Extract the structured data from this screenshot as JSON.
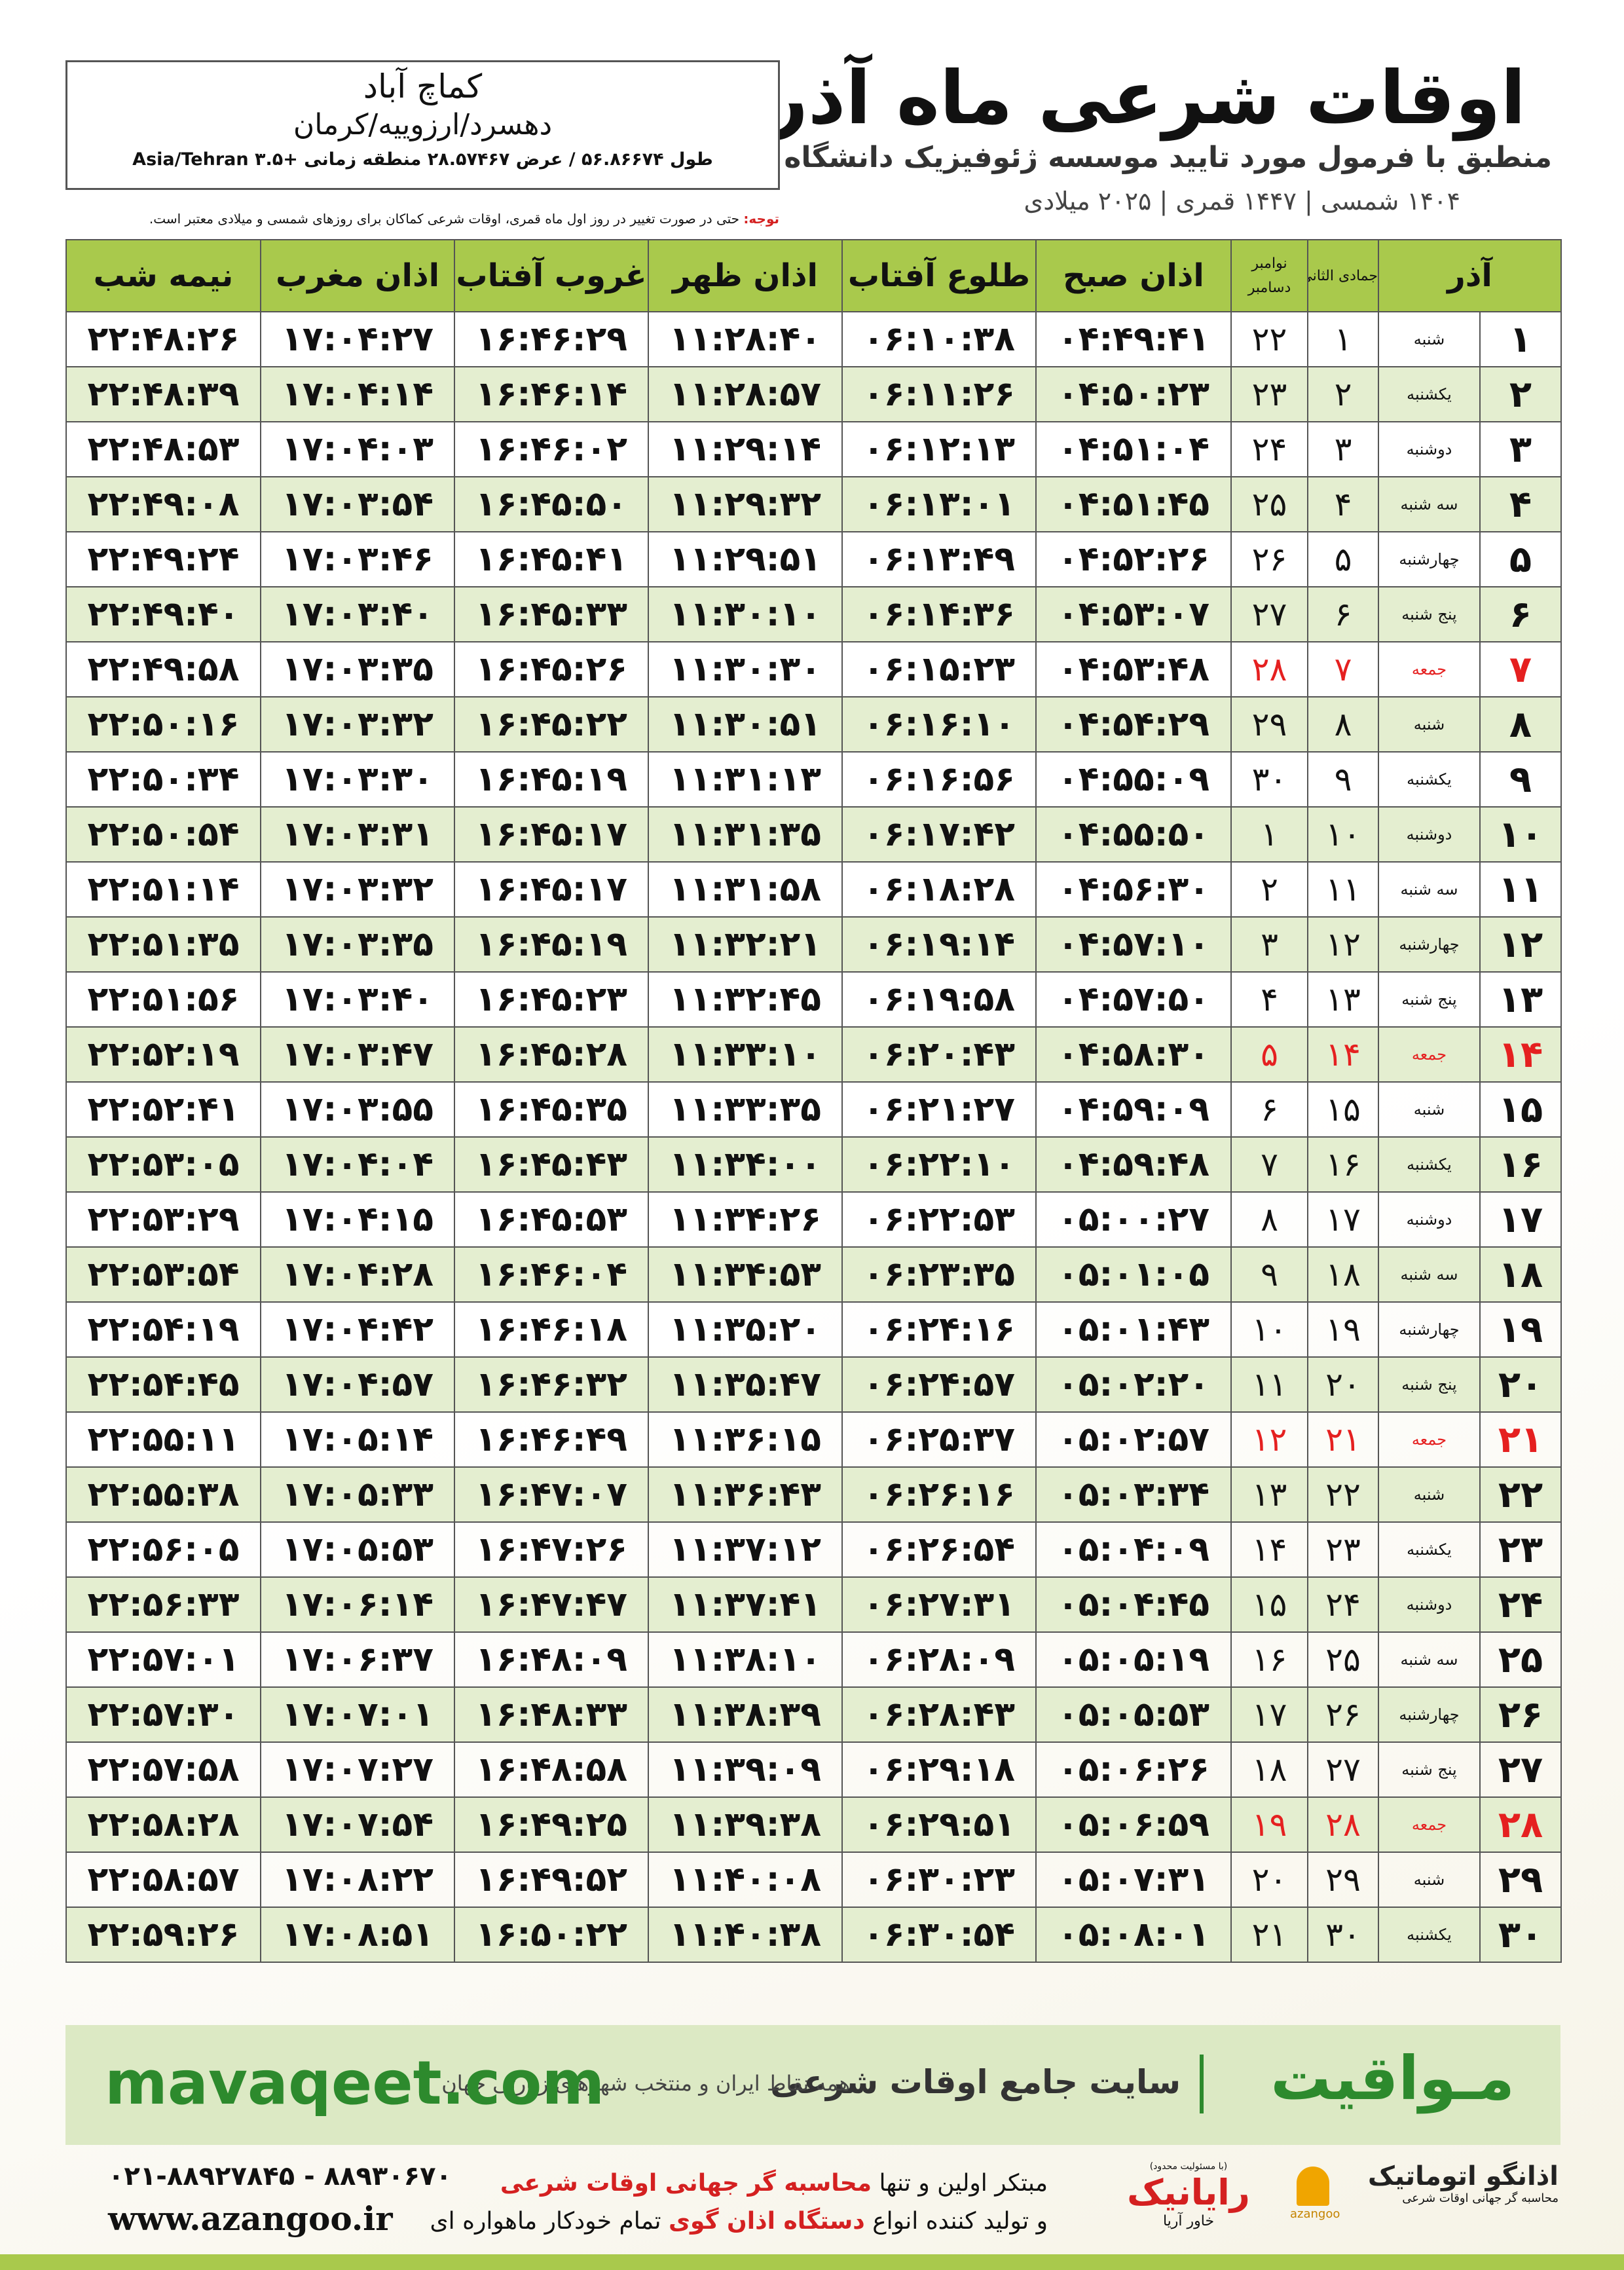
{
  "header": {
    "title": "اوقات شرعی ماه آذر",
    "subtitle": "منطبق با فرمول مورد تایید موسسه ژئوفیزیک دانشگاه تهران",
    "dates": "۱۴۰۴ شمسی | ۱۴۴۷ قمری | ۲۰۲۵ میلادی"
  },
  "location": {
    "city": "کماچ آباد",
    "region": "دهسرد/ارزوییه/کرمان",
    "coords": "طول ۵۶.۸۶۶۷۴ / عرض ۲۸.۵۷۴۶۷ منطقه زمانی +۳.۵ Asia/Tehran"
  },
  "note": {
    "label": "توجه:",
    "text": "حتی در صورت تغییر در روز اول ماه قمری، اوقات شرعی کماکان برای روزهای شمسی و میلادی معتبر است."
  },
  "table": {
    "header": [
      "آذر",
      "جمادی الثانی",
      "نوامبر",
      "دسامبر",
      "اذان صبح",
      "طلوع آفتاب",
      "اذان ظهر",
      "غروب آفتاب",
      "اذان مغرب",
      "نیمه شب"
    ],
    "rows": [
      [
        "۱",
        "شنبه",
        "۱",
        "۲۲",
        "۰۴:۴۹:۴۱",
        "۰۶:۱۰:۳۸",
        "۱۱:۲۸:۴۰",
        "۱۶:۴۶:۲۹",
        "۱۷:۰۴:۲۷",
        "۲۲:۴۸:۲۶"
      ],
      [
        "۲",
        "یکشنبه",
        "۲",
        "۲۳",
        "۰۴:۵۰:۲۳",
        "۰۶:۱۱:۲۶",
        "۱۱:۲۸:۵۷",
        "۱۶:۴۶:۱۴",
        "۱۷:۰۴:۱۴",
        "۲۲:۴۸:۳۹"
      ],
      [
        "۳",
        "دوشنبه",
        "۳",
        "۲۴",
        "۰۴:۵۱:۰۴",
        "۰۶:۱۲:۱۳",
        "۱۱:۲۹:۱۴",
        "۱۶:۴۶:۰۲",
        "۱۷:۰۴:۰۳",
        "۲۲:۴۸:۵۳"
      ],
      [
        "۴",
        "سه شنبه",
        "۴",
        "۲۵",
        "۰۴:۵۱:۴۵",
        "۰۶:۱۳:۰۱",
        "۱۱:۲۹:۳۲",
        "۱۶:۴۵:۵۰",
        "۱۷:۰۳:۵۴",
        "۲۲:۴۹:۰۸"
      ],
      [
        "۵",
        "چهارشنبه",
        "۵",
        "۲۶",
        "۰۴:۵۲:۲۶",
        "۰۶:۱۳:۴۹",
        "۱۱:۲۹:۵۱",
        "۱۶:۴۵:۴۱",
        "۱۷:۰۳:۴۶",
        "۲۲:۴۹:۲۴"
      ],
      [
        "۶",
        "پنج شنبه",
        "۶",
        "۲۷",
        "۰۴:۵۳:۰۷",
        "۰۶:۱۴:۳۶",
        "۱۱:۳۰:۱۰",
        "۱۶:۴۵:۳۳",
        "۱۷:۰۳:۴۰",
        "۲۲:۴۹:۴۰"
      ],
      [
        "۷",
        "جمعه",
        "۷",
        "۲۸",
        "۰۴:۵۳:۴۸",
        "۰۶:۱۵:۲۳",
        "۱۱:۳۰:۳۰",
        "۱۶:۴۵:۲۶",
        "۱۷:۰۳:۳۵",
        "۲۲:۴۹:۵۸"
      ],
      [
        "۸",
        "شنبه",
        "۸",
        "۲۹",
        "۰۴:۵۴:۲۹",
        "۰۶:۱۶:۱۰",
        "۱۱:۳۰:۵۱",
        "۱۶:۴۵:۲۲",
        "۱۷:۰۳:۳۲",
        "۲۲:۵۰:۱۶"
      ],
      [
        "۹",
        "یکشنبه",
        "۹",
        "۳۰",
        "۰۴:۵۵:۰۹",
        "۰۶:۱۶:۵۶",
        "۱۱:۳۱:۱۳",
        "۱۶:۴۵:۱۹",
        "۱۷:۰۳:۳۰",
        "۲۲:۵۰:۳۴"
      ],
      [
        "۱۰",
        "دوشنبه",
        "۱۰",
        "۱",
        "۰۴:۵۵:۵۰",
        "۰۶:۱۷:۴۲",
        "۱۱:۳۱:۳۵",
        "۱۶:۴۵:۱۷",
        "۱۷:۰۳:۳۱",
        "۲۲:۵۰:۵۴"
      ],
      [
        "۱۱",
        "سه شنبه",
        "۱۱",
        "۲",
        "۰۴:۵۶:۳۰",
        "۰۶:۱۸:۲۸",
        "۱۱:۳۱:۵۸",
        "۱۶:۴۵:۱۷",
        "۱۷:۰۳:۳۲",
        "۲۲:۵۱:۱۴"
      ],
      [
        "۱۲",
        "چهارشنبه",
        "۱۲",
        "۳",
        "۰۴:۵۷:۱۰",
        "۰۶:۱۹:۱۴",
        "۱۱:۳۲:۲۱",
        "۱۶:۴۵:۱۹",
        "۱۷:۰۳:۳۵",
        "۲۲:۵۱:۳۵"
      ],
      [
        "۱۳",
        "پنج شنبه",
        "۱۳",
        "۴",
        "۰۴:۵۷:۵۰",
        "۰۶:۱۹:۵۸",
        "۱۱:۳۲:۴۵",
        "۱۶:۴۵:۲۳",
        "۱۷:۰۳:۴۰",
        "۲۲:۵۱:۵۶"
      ],
      [
        "۱۴",
        "جمعه",
        "۱۴",
        "۵",
        "۰۴:۵۸:۳۰",
        "۰۶:۲۰:۴۳",
        "۱۱:۳۳:۱۰",
        "۱۶:۴۵:۲۸",
        "۱۷:۰۳:۴۷",
        "۲۲:۵۲:۱۹"
      ],
      [
        "۱۵",
        "شنبه",
        "۱۵",
        "۶",
        "۰۴:۵۹:۰۹",
        "۰۶:۲۱:۲۷",
        "۱۱:۳۳:۳۵",
        "۱۶:۴۵:۳۵",
        "۱۷:۰۳:۵۵",
        "۲۲:۵۲:۴۱"
      ],
      [
        "۱۶",
        "یکشنبه",
        "۱۶",
        "۷",
        "۰۴:۵۹:۴۸",
        "۰۶:۲۲:۱۰",
        "۱۱:۳۴:۰۰",
        "۱۶:۴۵:۴۳",
        "۱۷:۰۴:۰۴",
        "۲۲:۵۳:۰۵"
      ],
      [
        "۱۷",
        "دوشنبه",
        "۱۷",
        "۸",
        "۰۵:۰۰:۲۷",
        "۰۶:۲۲:۵۳",
        "۱۱:۳۴:۲۶",
        "۱۶:۴۵:۵۳",
        "۱۷:۰۴:۱۵",
        "۲۲:۵۳:۲۹"
      ],
      [
        "۱۸",
        "سه شنبه",
        "۱۸",
        "۹",
        "۰۵:۰۱:۰۵",
        "۰۶:۲۳:۳۵",
        "۱۱:۳۴:۵۳",
        "۱۶:۴۶:۰۴",
        "۱۷:۰۴:۲۸",
        "۲۲:۵۳:۵۴"
      ],
      [
        "۱۹",
        "چهارشنبه",
        "۱۹",
        "۱۰",
        "۰۵:۰۱:۴۳",
        "۰۶:۲۴:۱۶",
        "۱۱:۳۵:۲۰",
        "۱۶:۴۶:۱۸",
        "۱۷:۰۴:۴۲",
        "۲۲:۵۴:۱۹"
      ],
      [
        "۲۰",
        "پنج شنبه",
        "۲۰",
        "۱۱",
        "۰۵:۰۲:۲۰",
        "۰۶:۲۴:۵۷",
        "۱۱:۳۵:۴۷",
        "۱۶:۴۶:۳۲",
        "۱۷:۰۴:۵۷",
        "۲۲:۵۴:۴۵"
      ],
      [
        "۲۱",
        "جمعه",
        "۲۱",
        "۱۲",
        "۰۵:۰۲:۵۷",
        "۰۶:۲۵:۳۷",
        "۱۱:۳۶:۱۵",
        "۱۶:۴۶:۴۹",
        "۱۷:۰۵:۱۴",
        "۲۲:۵۵:۱۱"
      ],
      [
        "۲۲",
        "شنبه",
        "۲۲",
        "۱۳",
        "۰۵:۰۳:۳۴",
        "۰۶:۲۶:۱۶",
        "۱۱:۳۶:۴۳",
        "۱۶:۴۷:۰۷",
        "۱۷:۰۵:۳۳",
        "۲۲:۵۵:۳۸"
      ],
      [
        "۲۳",
        "یکشنبه",
        "۲۳",
        "۱۴",
        "۰۵:۰۴:۰۹",
        "۰۶:۲۶:۵۴",
        "۱۱:۳۷:۱۲",
        "۱۶:۴۷:۲۶",
        "۱۷:۰۵:۵۳",
        "۲۲:۵۶:۰۵"
      ],
      [
        "۲۴",
        "دوشنبه",
        "۲۴",
        "۱۵",
        "۰۵:۰۴:۴۵",
        "۰۶:۲۷:۳۱",
        "۱۱:۳۷:۴۱",
        "۱۶:۴۷:۴۷",
        "۱۷:۰۶:۱۴",
        "۲۲:۵۶:۳۳"
      ],
      [
        "۲۵",
        "سه شنبه",
        "۲۵",
        "۱۶",
        "۰۵:۰۵:۱۹",
        "۰۶:۲۸:۰۹",
        "۱۱:۳۸:۱۰",
        "۱۶:۴۸:۰۹",
        "۱۷:۰۶:۳۷",
        "۲۲:۵۷:۰۱"
      ],
      [
        "۲۶",
        "چهارشنبه",
        "۲۶",
        "۱۷",
        "۰۵:۰۵:۵۳",
        "۰۶:۲۸:۴۳",
        "۱۱:۳۸:۳۹",
        "۱۶:۴۸:۳۳",
        "۱۷:۰۷:۰۱",
        "۲۲:۵۷:۳۰"
      ],
      [
        "۲۷",
        "پنج شنبه",
        "۲۷",
        "۱۸",
        "۰۵:۰۶:۲۶",
        "۰۶:۲۹:۱۸",
        "۱۱:۳۹:۰۹",
        "۱۶:۴۸:۵۸",
        "۱۷:۰۷:۲۷",
        "۲۲:۵۷:۵۸"
      ],
      [
        "۲۸",
        "جمعه",
        "۲۸",
        "۱۹",
        "۰۵:۰۶:۵۹",
        "۰۶:۲۹:۵۱",
        "۱۱:۳۹:۳۸",
        "۱۶:۴۹:۲۵",
        "۱۷:۰۷:۵۴",
        "۲۲:۵۸:۲۸"
      ],
      [
        "۲۹",
        "شنبه",
        "۲۹",
        "۲۰",
        "۰۵:۰۷:۳۱",
        "۰۶:۳۰:۲۳",
        "۱۱:۴۰:۰۸",
        "۱۶:۴۹:۵۲",
        "۱۷:۰۸:۲۲",
        "۲۲:۵۸:۵۷"
      ],
      [
        "۳۰",
        "یکشنبه",
        "۳۰",
        "۲۱",
        "۰۵:۰۸:۰۱",
        "۰۶:۳۰:۵۴",
        "۱۱:۴۰:۳۸",
        "۱۶:۵۰:۲۲",
        "۱۷:۰۸:۵۱",
        "۲۲:۵۹:۲۶"
      ]
    ]
  },
  "footer": {
    "brand": "مـواقیت",
    "site_title": "سایت جامع اوقات شرعی",
    "site_desc": "همه نقاط ایران و منتخب شهرهای زیارتی جهان",
    "url": "mavaqeet.com"
  },
  "contact": {
    "phone": "۰۲۱-۸۸۹۲۷۸۴۵ - ۸۸۹۳۰۶۷۰",
    "web": "www.azangoo.ir",
    "line1_a": "مبتکر اولین و تنها",
    "line1_b": "محاسبه گر جهانی اوقات شرعی",
    "line2_a": "و تولید کننده انواع",
    "line2_b": "دستگاه اذان گوی",
    "line2_c": "تمام خودکار ماهواره ای",
    "logo1": "رایانیک",
    "logo1_sub": "خاور آریا",
    "logo1_note": "(با مسئولیت محدود)",
    "logo2": "اذانگو اتوماتیک",
    "logo2_sub": "محاسبه گر جهانی اوقات شرعی",
    "logo2_latin": "azangoo"
  }
}
